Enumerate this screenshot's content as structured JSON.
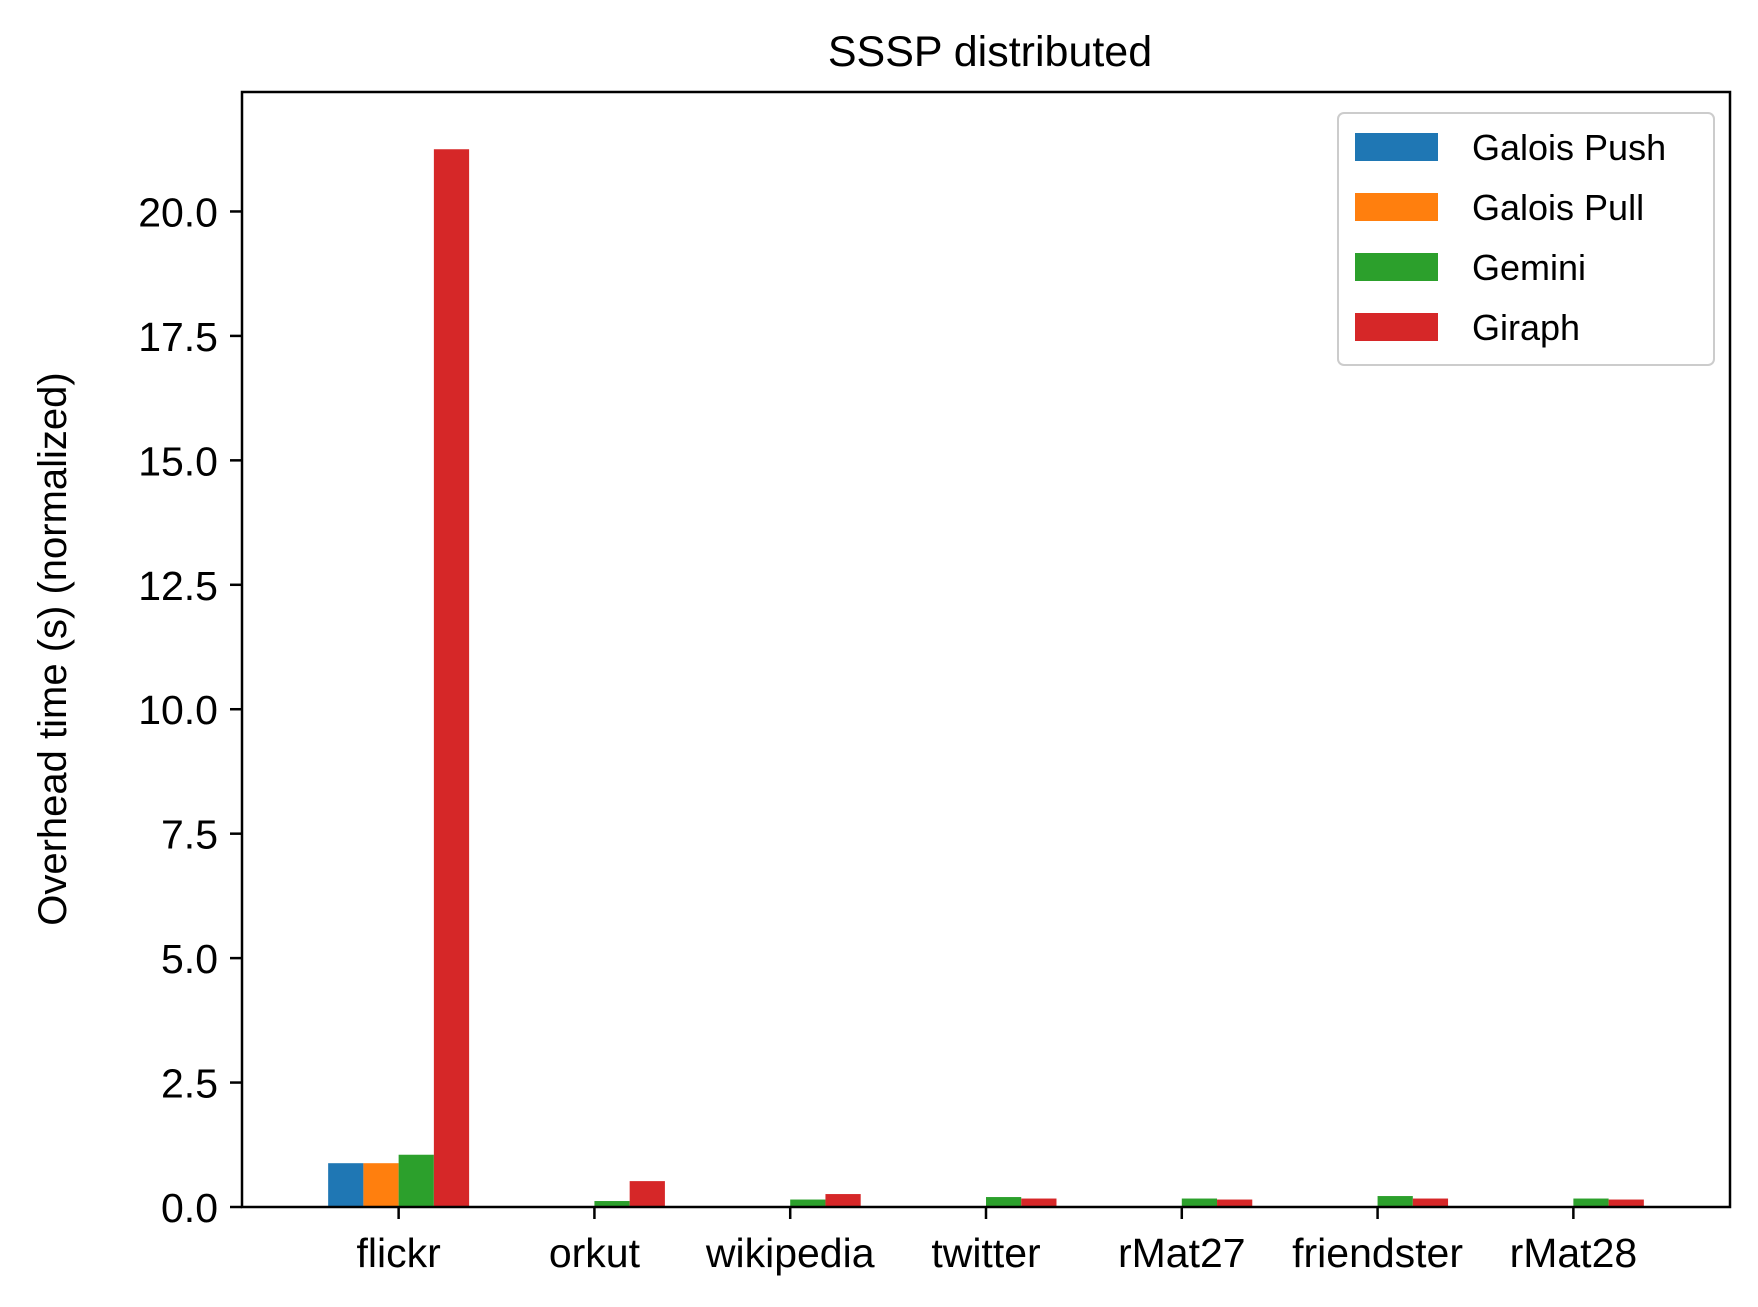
{
  "chart_data": {
    "type": "bar",
    "title": "SSSP distributed",
    "xlabel": "",
    "ylabel": "Overhead time (s) (normalized)",
    "ylim": [
      0,
      22.4
    ],
    "yticks": [
      0.0,
      2.5,
      5.0,
      7.5,
      10.0,
      12.5,
      15.0,
      17.5,
      20.0
    ],
    "ytick_labels": [
      "0.0",
      "2.5",
      "5.0",
      "7.5",
      "10.0",
      "12.5",
      "15.0",
      "17.5",
      "20.0"
    ],
    "categories": [
      "flickr",
      "orkut",
      "wikipedia",
      "twitter",
      "rMat27",
      "friendster",
      "rMat28"
    ],
    "grid": false,
    "legend_position": "top-right",
    "series": [
      {
        "name": "Galois Push",
        "color": "#1f77b4",
        "values": [
          0.88,
          0,
          0,
          0,
          0,
          0,
          0
        ]
      },
      {
        "name": "Galois Pull",
        "color": "#ff7f0e",
        "values": [
          0.88,
          0,
          0,
          0,
          0,
          0,
          0
        ]
      },
      {
        "name": "Gemini",
        "color": "#2ca02c",
        "values": [
          1.05,
          0.12,
          0.15,
          0.2,
          0.17,
          0.22,
          0.17
        ]
      },
      {
        "name": "Giraph",
        "color": "#d62728",
        "values": [
          21.25,
          0.52,
          0.26,
          0.17,
          0.15,
          0.17,
          0.15
        ]
      }
    ]
  }
}
